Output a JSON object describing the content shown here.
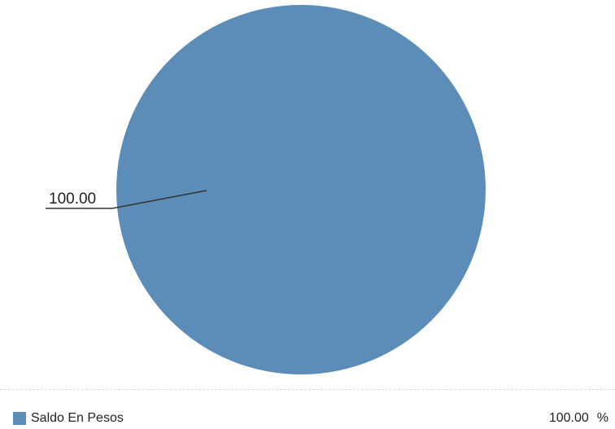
{
  "chart_data": {
    "type": "pie",
    "slices": [
      {
        "name": "Saldo En Pesos",
        "value": 100.0,
        "value_label": "100.00",
        "percent_label": "100.00",
        "percent_unit": "%"
      }
    ],
    "colors": [
      "#5b8db8"
    ],
    "legend_position": "bottom"
  }
}
